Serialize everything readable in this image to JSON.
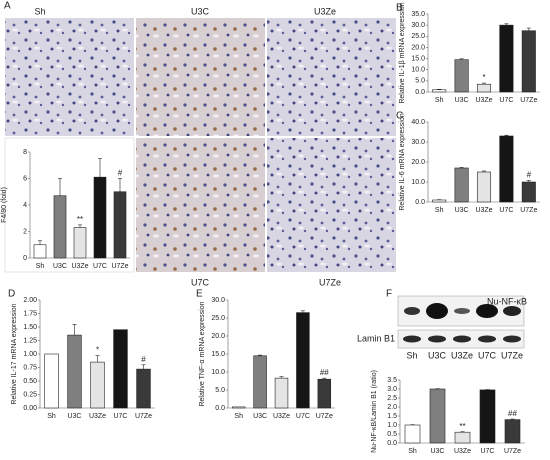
{
  "figure": {
    "panel_a": "A",
    "micrograph_labels": [
      "Sh",
      "U3C",
      "U3Ze",
      "U7C",
      "U7Ze"
    ],
    "blot": {
      "panel": "F",
      "rows": [
        "Nu-NF-κB",
        "Lamin B1"
      ],
      "lanes": [
        "Sh",
        "U3C",
        "U3Ze",
        "U7C",
        "U7Ze"
      ]
    }
  },
  "chart_data": [
    {
      "type": "bar",
      "ylabel": "F4/80 (fold)",
      "categories": [
        "Sh",
        "U3C",
        "U3Ze",
        "U7C",
        "U7Ze"
      ],
      "values": [
        1.0,
        4.7,
        2.3,
        6.1,
        5.0
      ],
      "errors": [
        0.3,
        1.3,
        0.2,
        1.4,
        1.0
      ],
      "colors": [
        "#ffffff",
        "#7f7f7f",
        "#e4e4e4",
        "#151515",
        "#3a3a3a"
      ],
      "ylim": [
        0,
        8
      ],
      "yticks": [
        0,
        2,
        4,
        6,
        8
      ],
      "annotations": [
        {
          "x": "U3Ze",
          "text": "**"
        },
        {
          "x": "U7Ze",
          "text": "#"
        }
      ]
    },
    {
      "type": "bar",
      "panel": "B",
      "ylabel": "Relative IL-1β mRNA expression",
      "categories": [
        "Sh",
        "U3C",
        "U3Ze",
        "U7C",
        "U7Ze"
      ],
      "values": [
        1.0,
        14.5,
        3.5,
        30.0,
        27.5
      ],
      "errors": [
        0.2,
        0.4,
        0.5,
        0.6,
        1.2
      ],
      "colors": [
        "#ffffff",
        "#7f7f7f",
        "#e4e4e4",
        "#151515",
        "#3a3a3a"
      ],
      "ylim": [
        0,
        35
      ],
      "yticks": [
        {
          "value": 0,
          "label": "0.0"
        },
        {
          "value": 5,
          "label": "5.0"
        },
        {
          "value": 10,
          "label": "10.0"
        },
        {
          "value": 15,
          "label": "15.0"
        },
        {
          "value": 20,
          "label": "20.0"
        },
        {
          "value": 25,
          "label": "25.0"
        },
        {
          "value": 30,
          "label": "30.0"
        },
        {
          "value": 35,
          "label": "35.0"
        }
      ],
      "annotations": [
        {
          "x": "U3Ze",
          "text": "*"
        }
      ]
    },
    {
      "type": "bar",
      "panel": "C",
      "ylabel": "Relative IL-6 mRNA expression",
      "categories": [
        "Sh",
        "U3C",
        "U3Ze",
        "U7C",
        "U7Ze"
      ],
      "values": [
        1.0,
        17.0,
        15.0,
        33.0,
        10.0
      ],
      "errors": [
        0.2,
        0.3,
        0.5,
        0.4,
        0.8
      ],
      "colors": [
        "#ffffff",
        "#7f7f7f",
        "#e4e4e4",
        "#151515",
        "#3a3a3a"
      ],
      "ylim": [
        0,
        40
      ],
      "yticks": [
        {
          "value": 0,
          "label": "0.0"
        },
        {
          "value": 10,
          "label": "10.0"
        },
        {
          "value": 20,
          "label": "20.0"
        },
        {
          "value": 30,
          "label": "30.0"
        },
        {
          "value": 40,
          "label": "40.0"
        }
      ],
      "annotations": [
        {
          "x": "U7Ze",
          "text": "#"
        }
      ]
    },
    {
      "type": "bar",
      "panel": "D",
      "ylabel": "Relative IL-17 mRNA expression",
      "categories": [
        "Sh",
        "U3C",
        "U3Ze",
        "U7C",
        "U7Ze"
      ],
      "values": [
        1.0,
        1.35,
        0.85,
        1.45,
        0.72
      ],
      "errors": [
        0,
        0.2,
        0.12,
        0,
        0.08
      ],
      "colors": [
        "#ffffff",
        "#7f7f7f",
        "#e4e4e4",
        "#151515",
        "#3a3a3a"
      ],
      "ylim": [
        0,
        2
      ],
      "yticks": [
        {
          "value": 0,
          "label": "0.00"
        },
        {
          "value": 0.25,
          "label": "0.25"
        },
        {
          "value": 0.5,
          "label": "0.50"
        },
        {
          "value": 0.75,
          "label": "0.75"
        },
        {
          "value": 1,
          "label": "1.00"
        },
        {
          "value": 1.25,
          "label": "1.25"
        },
        {
          "value": 1.5,
          "label": "1.50"
        },
        {
          "value": 1.75,
          "label": "1.75"
        },
        {
          "value": 2,
          "label": "2.00"
        }
      ],
      "annotations": [
        {
          "x": "U3Ze",
          "text": "*"
        },
        {
          "x": "U7Ze",
          "text": "#"
        }
      ]
    },
    {
      "type": "bar",
      "panel": "E",
      "ylabel": "Relative TNF-α mRNA expression",
      "categories": [
        "Sh",
        "U3C",
        "U3Ze",
        "U7C",
        "U7Ze"
      ],
      "values": [
        0.3,
        14.5,
        8.3,
        26.5,
        8.0
      ],
      "errors": [
        0,
        0.2,
        0.4,
        0.5,
        0.3
      ],
      "colors": [
        "#ffffff",
        "#7f7f7f",
        "#e4e4e4",
        "#151515",
        "#3a3a3a"
      ],
      "ylim": [
        0,
        30
      ],
      "yticks": [
        {
          "value": 0,
          "label": "0.0"
        },
        {
          "value": 5,
          "label": "5.0"
        },
        {
          "value": 10,
          "label": "10.0"
        },
        {
          "value": 15,
          "label": "15.0"
        },
        {
          "value": 20,
          "label": "20.0"
        },
        {
          "value": 25,
          "label": "25.0"
        },
        {
          "value": 30,
          "label": "30.0"
        }
      ],
      "annotations": [
        {
          "x": "U7Ze",
          "text": "##"
        }
      ]
    },
    {
      "type": "bar",
      "ylabel": "Nu-NF-κB/Lamin B1 (ratio)",
      "categories": [
        "Sh",
        "U3C",
        "U3Ze",
        "U7C",
        "U7Ze"
      ],
      "values": [
        1.0,
        3.0,
        0.6,
        2.95,
        1.3
      ],
      "errors": [
        0.02,
        0.02,
        0.03,
        0.02,
        0.03
      ],
      "colors": [
        "#ffffff",
        "#7f7f7f",
        "#e4e4e4",
        "#151515",
        "#3a3a3a"
      ],
      "ylim": [
        0,
        3.5
      ],
      "yticks": [
        {
          "value": 0,
          "label": "0.0"
        },
        {
          "value": 0.5,
          "label": "0.5"
        },
        {
          "value": 1,
          "label": "1.0"
        },
        {
          "value": 1.5,
          "label": "1.5"
        },
        {
          "value": 2,
          "label": "2.0"
        },
        {
          "value": 2.5,
          "label": "2.5"
        },
        {
          "value": 3,
          "label": "3.0"
        },
        {
          "value": 3.5,
          "label": "3.5"
        }
      ],
      "annotations": [
        {
          "x": "U3Ze",
          "text": "**"
        },
        {
          "x": "U7Ze",
          "text": "##"
        }
      ]
    }
  ]
}
